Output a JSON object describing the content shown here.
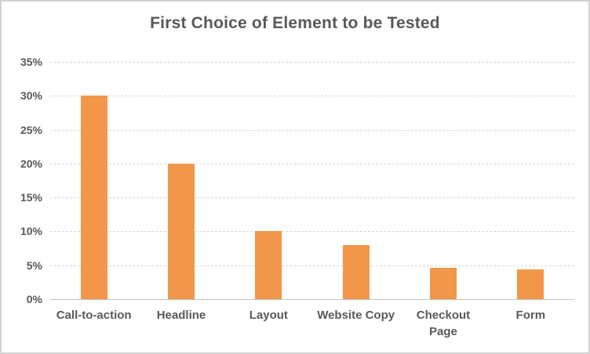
{
  "chart_data": {
    "type": "bar",
    "title": "First Choice of Element to be Tested",
    "categories": [
      "Call-to-action",
      "Headline",
      "Layout",
      "Website Copy",
      "Checkout Page",
      "Form"
    ],
    "category_lines": [
      [
        "Call-to-action"
      ],
      [
        "Headline"
      ],
      [
        "Layout"
      ],
      [
        "Website Copy"
      ],
      [
        "Checkout",
        "Page"
      ],
      [
        "Form"
      ]
    ],
    "values": [
      30,
      20,
      10,
      8,
      4.6,
      4.4
    ],
    "unit": "%",
    "xlabel": "",
    "ylabel": "",
    "ylim": [
      0,
      35
    ],
    "yticks": [
      0,
      5,
      10,
      15,
      20,
      25,
      30,
      35
    ],
    "ytick_labels": [
      "0%",
      "5%",
      "10%",
      "15%",
      "20%",
      "25%",
      "30%",
      "35%"
    ],
    "grid": true,
    "legend": false,
    "bar_color": "#f2964a",
    "gridline_color": "#d9d9d9",
    "axis_line_color": "#c3c3c3",
    "text_color": "#595959",
    "background_color": "#ffffff",
    "border_color": "#d2d2d2"
  }
}
